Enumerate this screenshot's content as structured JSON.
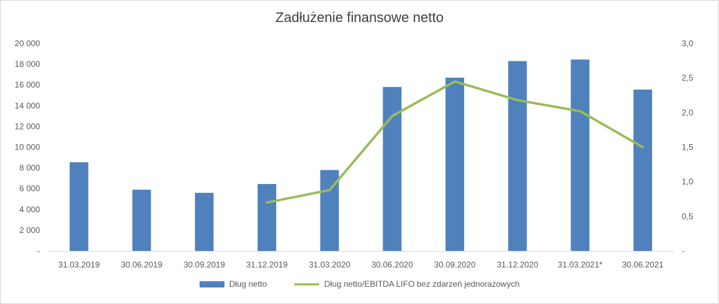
{
  "chart_data": {
    "type": "bar+line",
    "title": "Zadłużenie finansowe netto",
    "categories": [
      "31.03.2019",
      "30.06.2019",
      "30.09.2019",
      "31.12.2019",
      "31.03.2020",
      "30.06.2020",
      "30.09.2020",
      "31.12.2020",
      "31.03.2021*",
      "30.06.2021"
    ],
    "y_left": {
      "min": 0,
      "max": 20000,
      "ticks": [
        "-",
        "2 000",
        "4 000",
        "6 000",
        "8 000",
        "10 000",
        "12 000",
        "14 000",
        "16 000",
        "18 000",
        "20 000"
      ]
    },
    "y_right": {
      "min": 0,
      "max": 3.0,
      "ticks": [
        "-",
        "0,5",
        "1,0",
        "1,5",
        "2,0",
        "2,5",
        "3,0"
      ]
    },
    "series": [
      {
        "name": "Dług netto",
        "type": "bar",
        "axis": "left",
        "color": "#4f81bd",
        "values": [
          8550,
          5900,
          5600,
          6450,
          7800,
          15800,
          16700,
          18300,
          18450,
          15550
        ]
      },
      {
        "name": "Dług netto/EBITDA LIFO bez zdarzeń jednorazowych",
        "type": "line",
        "axis": "right",
        "color": "#9bbb59",
        "values": [
          null,
          null,
          null,
          0.7,
          0.88,
          1.95,
          2.45,
          2.18,
          2.02,
          1.5
        ]
      }
    ],
    "grid": false,
    "legend": "bottom"
  }
}
